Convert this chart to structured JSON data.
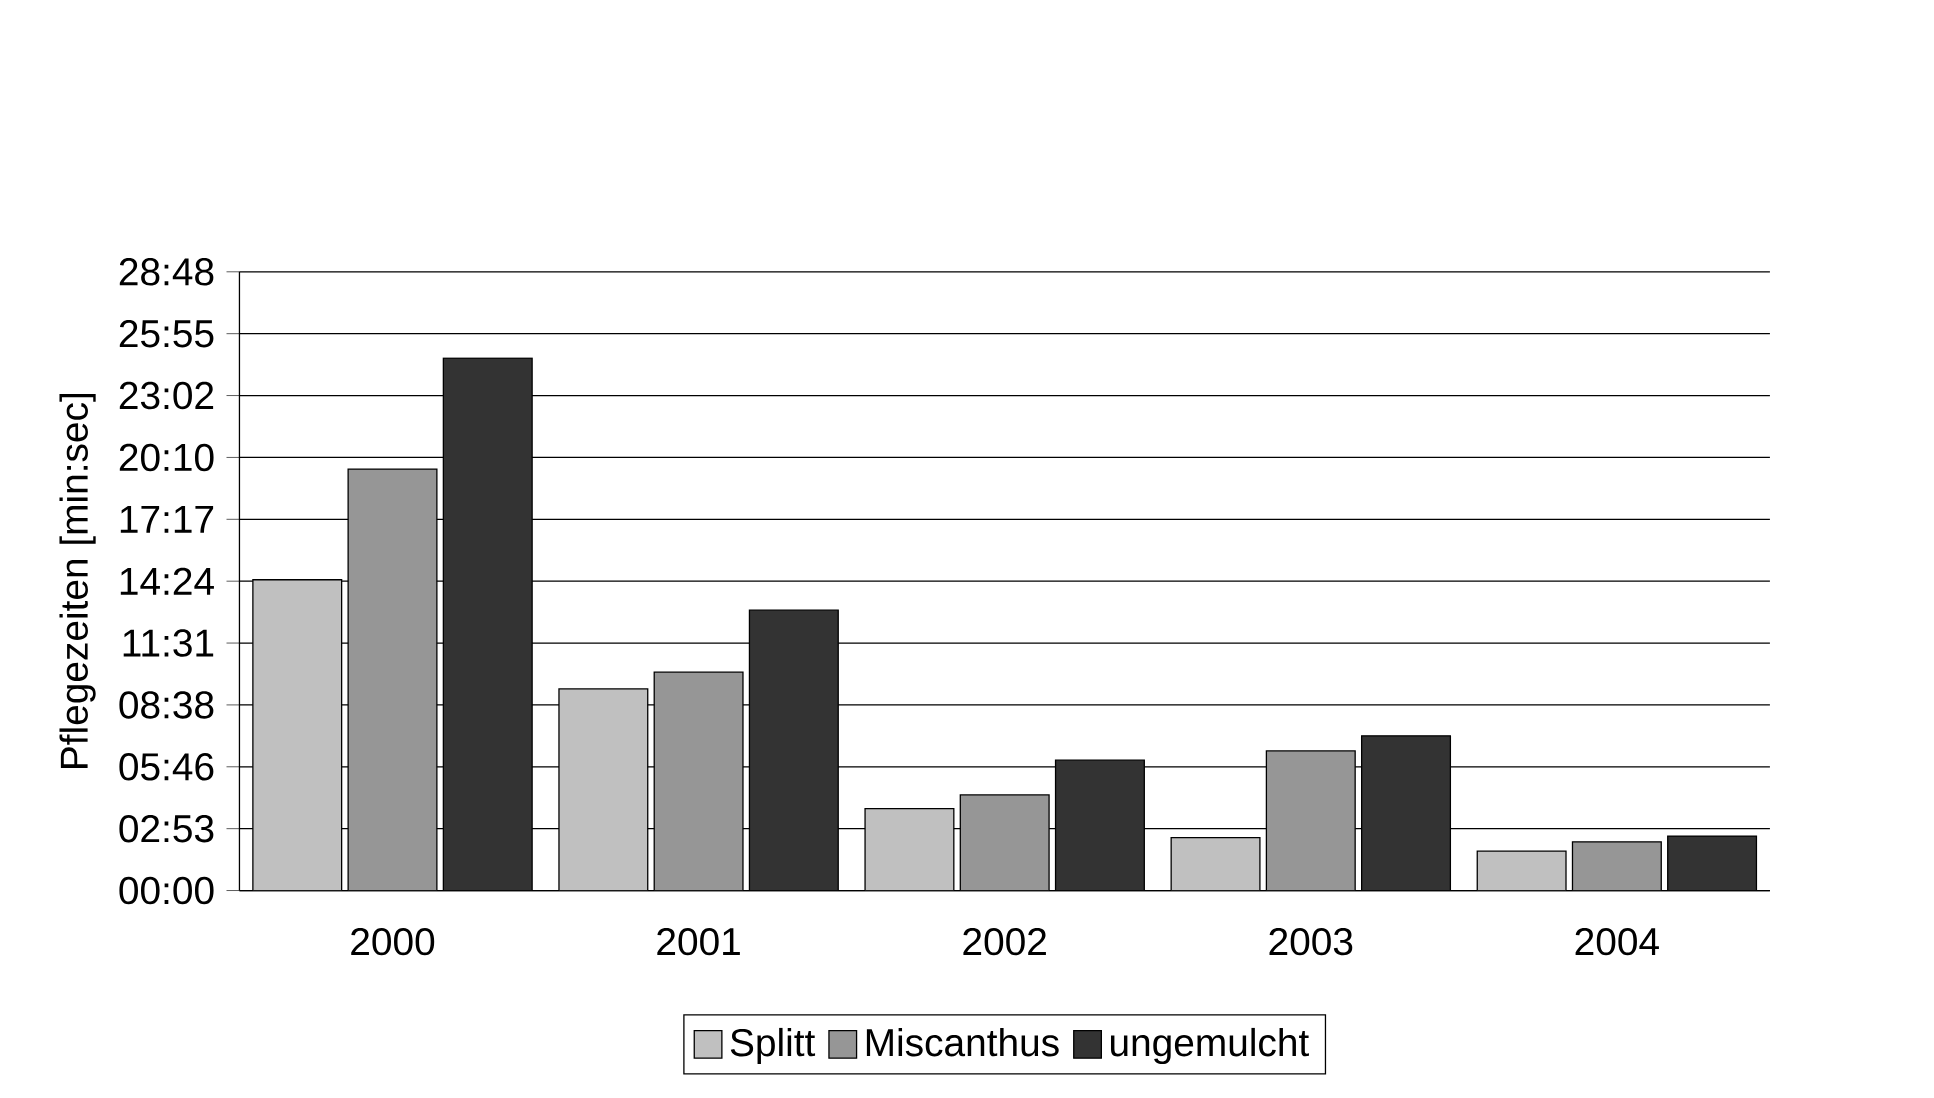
{
  "chart_data": {
    "type": "bar",
    "ylabel": "Pflegezeiten [min:sec]",
    "categories": [
      "2000",
      "2001",
      "2002",
      "2003",
      "2004"
    ],
    "series": [
      {
        "name": "Splitt",
        "color": "#c0c0c0",
        "values": [
          868,
          563,
          229,
          148,
          110
        ]
      },
      {
        "name": "Miscanthus",
        "color": "#969696",
        "values": [
          1177,
          610,
          267,
          390,
          136
        ]
      },
      {
        "name": "ungemulcht",
        "color": "#333333",
        "values": [
          1487,
          783,
          364,
          432,
          152
        ]
      }
    ],
    "ylim": [
      0,
      1728
    ],
    "yticks": [
      {
        "value": 0,
        "label": "00:00"
      },
      {
        "value": 172.8,
        "label": "02:53"
      },
      {
        "value": 345.6,
        "label": "05:46"
      },
      {
        "value": 518.4,
        "label": "08:38"
      },
      {
        "value": 691.2,
        "label": "11:31"
      },
      {
        "value": 864,
        "label": "14:24"
      },
      {
        "value": 1036.8,
        "label": "17:17"
      },
      {
        "value": 1209.6,
        "label": "20:10"
      },
      {
        "value": 1382.4,
        "label": "23:02"
      },
      {
        "value": 1555.2,
        "label": "25:55"
      },
      {
        "value": 1728,
        "label": "28:48"
      }
    ],
    "grid": "y",
    "legend": "bottom"
  }
}
